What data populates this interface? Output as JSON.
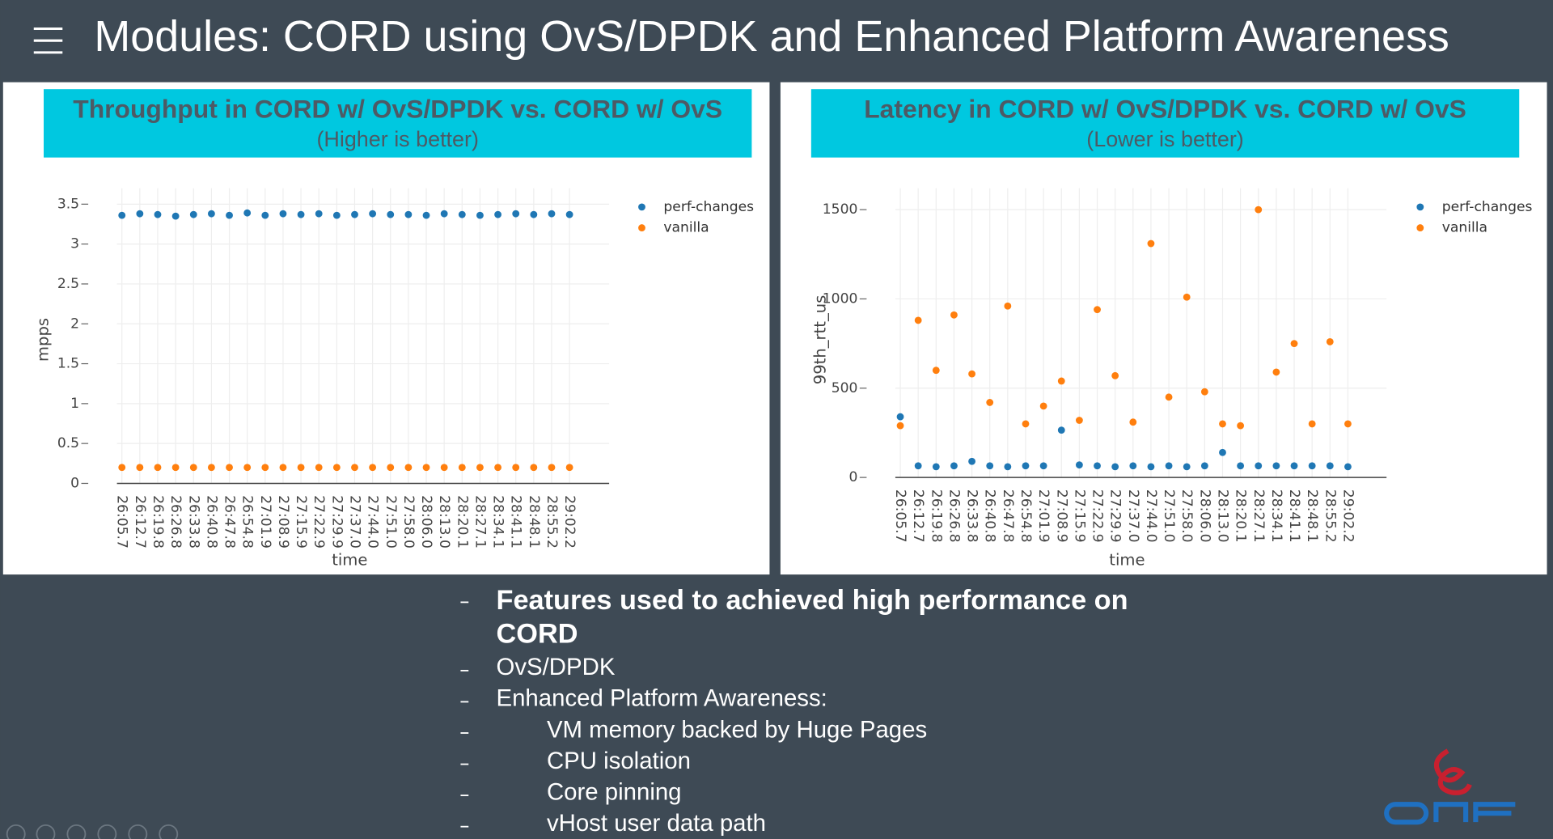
{
  "title": "Modules: CORD using OvS/DPDK and Enhanced Platform Awareness",
  "chart_data": [
    {
      "type": "scatter",
      "title": "Throughput in CORD w/ OvS/DPDK vs. CORD w/ OvS",
      "subtitle": "(Higher is better)",
      "x_label": "time",
      "y_label": "mpps",
      "categories": [
        "26:05.7",
        "26:12.7",
        "26:19.8",
        "26:26.8",
        "26:33.8",
        "26:40.8",
        "26:47.8",
        "26:54.8",
        "27:01.9",
        "27:08.9",
        "27:15.9",
        "27:22.9",
        "27:29.9",
        "27:37.0",
        "27:44.0",
        "27:51.0",
        "27:58.0",
        "28:06.0",
        "28:13.0",
        "28:20.1",
        "28:27.1",
        "28:34.1",
        "28:41.1",
        "28:48.1",
        "28:55.2",
        "29:02.2"
      ],
      "series": [
        {
          "name": "perf-changes",
          "color": "#1f77b4",
          "values": [
            3.36,
            3.38,
            3.37,
            3.35,
            3.37,
            3.38,
            3.36,
            3.39,
            3.36,
            3.38,
            3.37,
            3.38,
            3.36,
            3.37,
            3.38,
            3.37,
            3.37,
            3.36,
            3.38,
            3.37,
            3.36,
            3.37,
            3.38,
            3.37,
            3.38,
            3.37
          ]
        },
        {
          "name": "vanilla",
          "color": "#ff7f0e",
          "values": [
            0.2,
            0.2,
            0.2,
            0.2,
            0.2,
            0.2,
            0.2,
            0.2,
            0.2,
            0.2,
            0.2,
            0.2,
            0.2,
            0.2,
            0.2,
            0.2,
            0.2,
            0.2,
            0.2,
            0.2,
            0.2,
            0.2,
            0.2,
            0.2,
            0.2,
            0.2
          ]
        }
      ],
      "ylim": [
        0,
        3.7
      ],
      "yticks": [
        0,
        0.5,
        1,
        1.5,
        2,
        2.5,
        3,
        3.5
      ],
      "grid": true,
      "legend": "top-right"
    },
    {
      "type": "scatter",
      "title": "Latency in CORD w/ OvS/DPDK vs. CORD w/ OvS",
      "subtitle": "(Lower is better)",
      "x_label": "time",
      "y_label": "99th_rtt_us",
      "categories": [
        "26:05.7",
        "26:12.7",
        "26:19.8",
        "26:26.8",
        "26:33.8",
        "26:40.8",
        "26:47.8",
        "26:54.8",
        "27:01.9",
        "27:08.9",
        "27:15.9",
        "27:22.9",
        "27:29.9",
        "27:37.0",
        "27:44.0",
        "27:51.0",
        "27:58.0",
        "28:06.0",
        "28:13.0",
        "28:20.1",
        "28:27.1",
        "28:34.1",
        "28:41.1",
        "28:48.1",
        "28:55.2",
        "29:02.2"
      ],
      "series": [
        {
          "name": "perf-changes",
          "color": "#1f77b4",
          "values": [
            340,
            65,
            60,
            65,
            90,
            65,
            60,
            65,
            65,
            265,
            70,
            65,
            60,
            65,
            60,
            65,
            60,
            65,
            140,
            65,
            65,
            65,
            65,
            65,
            65,
            60
          ]
        },
        {
          "name": "vanilla",
          "color": "#ff7f0e",
          "values": [
            290,
            880,
            600,
            910,
            580,
            420,
            960,
            300,
            400,
            540,
            320,
            940,
            570,
            310,
            1310,
            450,
            1010,
            480,
            300,
            290,
            1500,
            590,
            750,
            300,
            760,
            300
          ]
        }
      ],
      "ylim": [
        0,
        1620
      ],
      "yticks": [
        0,
        500,
        1000,
        1500
      ],
      "grid": true,
      "legend": "top-right"
    }
  ],
  "bullets": [
    "Features used to achieved high performance on CORD",
    "OvS/DPDK",
    "Enhanced Platform Awareness:"
  ],
  "sub_bullets": [
    "VM memory backed by Huge Pages",
    "CPU isolation",
    "Core pinning",
    "vHost user data path"
  ]
}
